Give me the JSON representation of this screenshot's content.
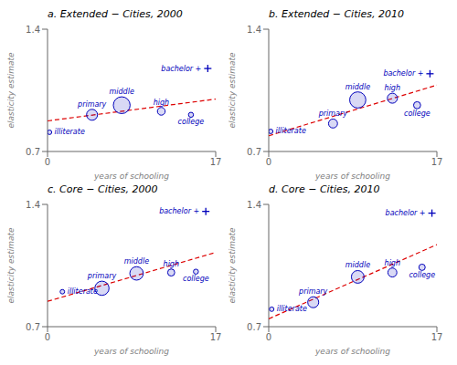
{
  "chart_data": [
    {
      "type": "scatter",
      "title": "a. Extended − Cities, 2000",
      "x_label": "years of schooling",
      "y_label": "elasticity estimate",
      "xlim": [
        0,
        17
      ],
      "ylim": [
        0.7,
        1.4
      ],
      "xticks": [
        0,
        17
      ],
      "yticks": [
        0.7,
        1.4
      ],
      "series": [
        {
          "type": "scatter",
          "color": "#0000bb",
          "x": [
            0.2,
            4.5,
            7.5,
            11.5,
            14.5,
            16.2
          ],
          "values": [
            0.81,
            0.91,
            0.965,
            0.93,
            0.91,
            1.175
          ],
          "sizes": [
            20,
            120,
            280,
            60,
            25,
            0
          ],
          "markers": [
            "circle",
            "circle",
            "circle",
            "circle",
            "circle",
            "plus"
          ],
          "point_labels": [
            "illiterate",
            "primary",
            "middle",
            "high",
            "college",
            "bachelor +"
          ]
        },
        {
          "type": "line",
          "color": "#dd0000",
          "line_style": "dashed",
          "x": [
            0,
            17
          ],
          "values": [
            0.875,
            1.0
          ]
        }
      ]
    },
    {
      "type": "scatter",
      "title": "b. Extended − Cities, 2010",
      "x_label": "years of schooling",
      "y_label": "elasticity estimate",
      "xlim": [
        0,
        17
      ],
      "ylim": [
        0.7,
        1.4
      ],
      "xticks": [
        0,
        17
      ],
      "yticks": [
        0.7,
        1.4
      ],
      "series": [
        {
          "type": "scatter",
          "color": "#0000bb",
          "x": [
            0.2,
            6.5,
            9.0,
            12.5,
            15.0,
            16.3
          ],
          "values": [
            0.815,
            0.86,
            0.995,
            1.005,
            0.965,
            1.145
          ],
          "sizes": [
            20,
            80,
            260,
            100,
            50,
            0
          ],
          "markers": [
            "circle",
            "circle",
            "circle",
            "circle",
            "circle",
            "plus"
          ],
          "point_labels": [
            "illiterate",
            "primary",
            "middle",
            "high",
            "college",
            "bachelor +"
          ]
        },
        {
          "type": "line",
          "color": "#dd0000",
          "line_style": "dashed",
          "x": [
            0,
            17
          ],
          "values": [
            0.79,
            1.08
          ]
        }
      ]
    },
    {
      "type": "scatter",
      "title": "c. Core − Cities, 2000",
      "x_label": "years of schooling",
      "y_label": "elasticity estimate",
      "xlim": [
        0,
        17
      ],
      "ylim": [
        0.7,
        1.4
      ],
      "xticks": [
        0,
        17
      ],
      "yticks": [
        0.7,
        1.4
      ],
      "series": [
        {
          "type": "scatter",
          "color": "#0000bb",
          "x": [
            1.5,
            5.5,
            9.0,
            12.5,
            15.0,
            16.0
          ],
          "values": [
            0.9,
            0.92,
            1.005,
            1.01,
            1.015,
            1.36
          ],
          "sizes": [
            20,
            200,
            180,
            50,
            25,
            0
          ],
          "markers": [
            "circle",
            "circle",
            "circle",
            "circle",
            "circle",
            "plus"
          ],
          "point_labels": [
            "illiterate",
            "primary",
            "middle",
            "high",
            "college",
            "bachelor +"
          ]
        },
        {
          "type": "line",
          "color": "#dd0000",
          "line_style": "dashed",
          "x": [
            0,
            17
          ],
          "values": [
            0.845,
            1.125
          ]
        }
      ]
    },
    {
      "type": "scatter",
      "title": "d. Core − Cities, 2010",
      "x_label": "years of schooling",
      "y_label": "elasticity estimate",
      "xlim": [
        0,
        17
      ],
      "ylim": [
        0.7,
        1.4
      ],
      "xticks": [
        0,
        17
      ],
      "yticks": [
        0.7,
        1.4
      ],
      "series": [
        {
          "type": "scatter",
          "color": "#0000bb",
          "x": [
            0.3,
            4.5,
            9.0,
            12.5,
            15.5,
            16.5
          ],
          "values": [
            0.8,
            0.84,
            0.985,
            1.01,
            1.04,
            1.35
          ],
          "sizes": [
            20,
            120,
            160,
            80,
            40,
            0
          ],
          "markers": [
            "circle",
            "circle",
            "circle",
            "circle",
            "circle",
            "plus"
          ],
          "point_labels": [
            "illiterate",
            "primary",
            "middle",
            "high",
            "college",
            "bachelor +"
          ]
        },
        {
          "type": "line",
          "color": "#dd0000",
          "line_style": "dashed",
          "x": [
            0,
            17
          ],
          "values": [
            0.745,
            1.17
          ]
        }
      ]
    }
  ]
}
